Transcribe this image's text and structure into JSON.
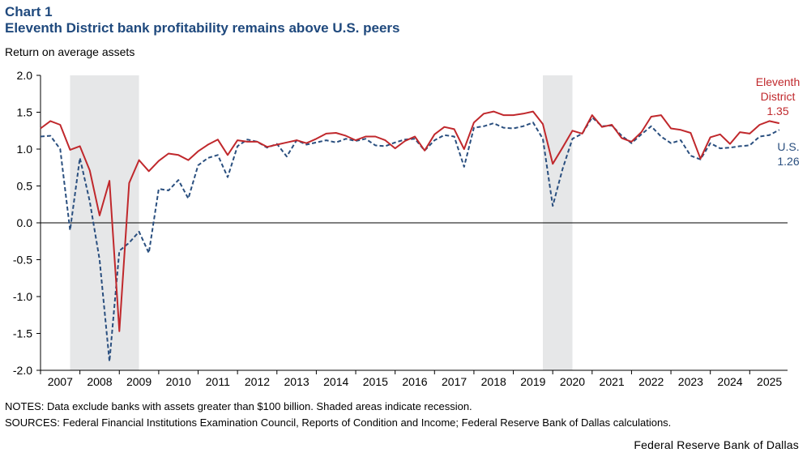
{
  "header": {
    "chart_number": "Chart 1",
    "title": "Eleventh District bank profitability remains above U.S. peers",
    "ylabel": "Return on average assets"
  },
  "footer": {
    "notes": "NOTES: Data exclude banks with assets greater than $100 billion.  Shaded areas indicate recession.",
    "sources": "SOURCES: Federal Financial Institutions Examination Council, Reports of Condition and Income; Federal Reserve Bank of Dallas calculations.",
    "credit": "Federal Reserve Bank of Dallas"
  },
  "colors": {
    "eleventh_district": "#c0282c",
    "us": "#2a4f7f",
    "recession": "#e6e7e8"
  },
  "chart_data": {
    "type": "line",
    "title": "Eleventh District bank profitability remains above U.S. peers",
    "ylabel": "Return on average assets",
    "xlim": [
      2007.0,
      2025.96
    ],
    "ylim": [
      -2.0,
      2.0
    ],
    "yticks": [
      "2.0",
      "1.5",
      "1.0",
      "0.5",
      "0.0",
      "-0.5",
      "-1.0",
      "-1.5",
      "-2.0"
    ],
    "xticks": [
      "2007",
      "2008",
      "2009",
      "2010",
      "2011",
      "2012",
      "2013",
      "2014",
      "2015",
      "2016",
      "2017",
      "2018",
      "2019",
      "2020",
      "2021",
      "2022",
      "2023",
      "2024",
      "2025"
    ],
    "recessions": [
      [
        2007.75,
        2009.5
      ],
      [
        2019.75,
        2020.5
      ]
    ],
    "x_start_quarter": "2007 Q1",
    "series": [
      {
        "name": "Eleventh District",
        "label_lines": [
          "Eleventh",
          "District",
          "1.35"
        ],
        "values": [
          1.28,
          1.38,
          1.33,
          0.99,
          1.04,
          0.71,
          0.1,
          0.57,
          -1.47,
          0.54,
          0.85,
          0.7,
          0.84,
          0.94,
          0.92,
          0.85,
          0.97,
          1.06,
          1.13,
          0.92,
          1.12,
          1.1,
          1.1,
          1.03,
          1.06,
          1.09,
          1.12,
          1.08,
          1.14,
          1.21,
          1.22,
          1.18,
          1.12,
          1.17,
          1.17,
          1.12,
          1.01,
          1.11,
          1.17,
          0.98,
          1.2,
          1.3,
          1.27,
          1.0,
          1.36,
          1.48,
          1.51,
          1.46,
          1.46,
          1.48,
          1.51,
          1.34,
          0.8,
          1.02,
          1.25,
          1.21,
          1.46,
          1.3,
          1.33,
          1.15,
          1.1,
          1.23,
          1.44,
          1.46,
          1.28,
          1.26,
          1.22,
          0.87,
          1.16,
          1.2,
          1.07,
          1.23,
          1.21,
          1.33,
          1.38,
          1.35
        ]
      },
      {
        "name": "U.S.",
        "label_lines": [
          "U.S.",
          "1.26"
        ],
        "values": [
          1.17,
          1.18,
          1.0,
          -0.1,
          0.88,
          0.29,
          -0.5,
          -1.88,
          -0.38,
          -0.27,
          -0.12,
          -0.41,
          0.46,
          0.44,
          0.58,
          0.33,
          0.78,
          0.88,
          0.92,
          0.62,
          1.04,
          1.13,
          1.1,
          1.02,
          1.07,
          0.9,
          1.12,
          1.06,
          1.09,
          1.12,
          1.09,
          1.14,
          1.11,
          1.14,
          1.05,
          1.04,
          1.09,
          1.13,
          1.14,
          0.98,
          1.12,
          1.19,
          1.17,
          0.76,
          1.29,
          1.31,
          1.35,
          1.29,
          1.28,
          1.31,
          1.36,
          1.14,
          0.23,
          0.73,
          1.14,
          1.21,
          1.43,
          1.31,
          1.32,
          1.18,
          1.08,
          1.2,
          1.31,
          1.17,
          1.08,
          1.12,
          0.91,
          0.86,
          1.08,
          1.01,
          1.02,
          1.04,
          1.05,
          1.17,
          1.19,
          1.26
        ]
      }
    ]
  }
}
